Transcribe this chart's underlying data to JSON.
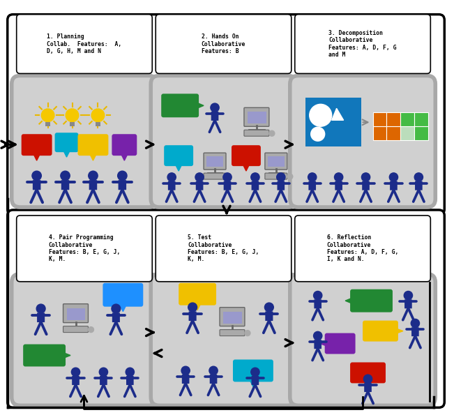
{
  "bg_color": "#ffffff",
  "person_color": "#1c2c8a",
  "gray_box_color": "#c8c8c8",
  "gray_box_edge": "#a0a0a0",
  "outer_box_color": "#ffffff",
  "outer_box_edge": "#000000",
  "white_box_color": "#ffffff",
  "white_box_edge": "#000000",
  "colors": {
    "red": "#cc1100",
    "blue": "#1e90ff",
    "cyan": "#00aacc",
    "yellow": "#f0c000",
    "purple": "#7722aa",
    "green": "#228833",
    "teal": "#009999",
    "orange": "#dd6600",
    "lt_green": "#44bb44",
    "blue_dark": "#0055aa"
  },
  "stage_labels": [
    "1. Planning\nCollab.  Features:  A,\nD, G, H, M and N",
    "2. Hands On\nCollaborative\nFeatures: B",
    "3. Decomposition\nCollaborative\nFeatures: A, D, F, G\nand M",
    "4. Pair Programming\nCollaborative\nFeatures: B, E, G, J,\nK, M.",
    "5. Test\nCollaborative\nFeatures: B, E, G, J,\nK, M.",
    "6. Reflection\nCollaborative\nFeatures: A, D, F, G,\nI, K and N."
  ]
}
